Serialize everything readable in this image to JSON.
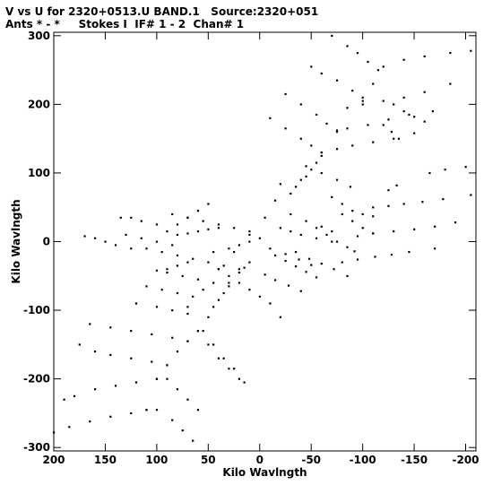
{
  "header": {
    "line1": "V vs U for 2320+0513.U BAND.1   Source:2320+051",
    "line2": "Ants * - *     Stokes I  IF# 1 - 2  Chan# 1"
  },
  "chart_data": {
    "type": "scatter",
    "xlabel": "Kilo Wavlngth",
    "ylabel": "Kilo Wavlngth",
    "xlim": [
      200,
      -210
    ],
    "ylim": [
      -305,
      305
    ],
    "x_reversed": true,
    "xticks": [
      200,
      150,
      100,
      50,
      0,
      -50,
      -100,
      -150,
      -200
    ],
    "xtick_labels": [
      "200",
      "150",
      "100",
      "50",
      "0",
      "-50",
      "-100",
      "-150",
      "-200"
    ],
    "yticks": [
      300,
      200,
      100,
      0,
      -100,
      -200,
      -300
    ],
    "ytick_labels": [
      "300",
      "200",
      "100",
      "0",
      "-100",
      "-200",
      "-300"
    ],
    "grid": false,
    "marker_color": "#000000",
    "series": [
      {
        "points": [
          [
            -125,
            75
          ],
          [
            -133,
            82
          ],
          [
            -165,
            100
          ],
          [
            -180,
            105
          ],
          [
            -200,
            109
          ],
          [
            -220,
            115
          ],
          [
            -110,
            50
          ],
          [
            -125,
            52
          ],
          [
            -140,
            55
          ],
          [
            -158,
            58
          ],
          [
            -178,
            62
          ],
          [
            -205,
            68
          ],
          [
            -95,
            8
          ],
          [
            -110,
            12
          ],
          [
            -130,
            15
          ],
          [
            -150,
            18
          ],
          [
            -170,
            22
          ],
          [
            -190,
            28
          ],
          [
            -80,
            -30
          ],
          [
            -95,
            -26
          ],
          [
            -112,
            -22
          ],
          [
            -128,
            -19
          ],
          [
            -145,
            -15
          ],
          [
            -170,
            -10
          ],
          [
            -70,
            65
          ],
          [
            -80,
            55
          ],
          [
            -90,
            45
          ],
          [
            -100,
            40
          ],
          [
            -110,
            37
          ],
          [
            -55,
            20
          ],
          [
            -65,
            10
          ],
          [
            -75,
            0
          ],
          [
            -85,
            -8
          ],
          [
            -92,
            -14
          ],
          [
            -35,
            -15
          ],
          [
            -48,
            -25
          ],
          [
            -60,
            -32
          ],
          [
            -72,
            -40
          ],
          [
            -85,
            -50
          ],
          [
            -45,
            110
          ],
          [
            -60,
            100
          ],
          [
            -75,
            90
          ],
          [
            -88,
            80
          ],
          [
            -5,
            -48
          ],
          [
            -15,
            -56
          ],
          [
            -28,
            -64
          ],
          [
            -40,
            -72
          ],
          [
            -30,
            40
          ],
          [
            -45,
            30
          ],
          [
            -60,
            22
          ],
          [
            -70,
            15
          ],
          [
            -10,
            -10
          ],
          [
            -25,
            -18
          ],
          [
            -38,
            -26
          ],
          [
            -50,
            -34
          ],
          [
            -20,
            84
          ],
          [
            -15,
            60
          ],
          [
            -5,
            35
          ],
          [
            10,
            10
          ],
          [
            25,
            -15
          ],
          [
            40,
            -40
          ],
          [
            55,
            -70
          ],
          [
            70,
            -95
          ],
          [
            -20,
            20
          ],
          [
            -30,
            15
          ],
          [
            -40,
            10
          ],
          [
            -55,
            5
          ],
          [
            -70,
            0
          ],
          [
            0,
            5
          ],
          [
            10,
            0
          ],
          [
            20,
            -5
          ],
          [
            30,
            -10
          ],
          [
            45,
            -15
          ],
          [
            -15,
            -20
          ],
          [
            -25,
            -28
          ],
          [
            -35,
            -36
          ],
          [
            -45,
            -44
          ],
          [
            -55,
            -52
          ],
          [
            100,
            25
          ],
          [
            115,
            30
          ],
          [
            125,
            35
          ],
          [
            135,
            35
          ],
          [
            130,
            10
          ],
          [
            115,
            5
          ],
          [
            100,
            0
          ],
          [
            85,
            -5
          ],
          [
            110,
            -10
          ],
          [
            95,
            -15
          ],
          [
            80,
            -20
          ],
          [
            65,
            -25
          ],
          [
            50,
            -30
          ],
          [
            35,
            -35
          ],
          [
            20,
            -40
          ],
          [
            85,
            40
          ],
          [
            70,
            35
          ],
          [
            55,
            30
          ],
          [
            40,
            25
          ],
          [
            25,
            20
          ],
          [
            10,
            15
          ],
          [
            90,
            -45
          ],
          [
            75,
            -50
          ],
          [
            60,
            -55
          ],
          [
            45,
            -60
          ],
          [
            30,
            -65
          ],
          [
            110,
            -65
          ],
          [
            95,
            -70
          ],
          [
            80,
            -75
          ],
          [
            65,
            -80
          ],
          [
            120,
            -90
          ],
          [
            100,
            -95
          ],
          [
            85,
            -100
          ],
          [
            70,
            -105
          ],
          [
            40,
            -40
          ],
          [
            30,
            -50
          ],
          [
            20,
            -60
          ],
          [
            10,
            -70
          ],
          [
            0,
            -80
          ],
          [
            -10,
            -90
          ],
          [
            -20,
            -110
          ],
          [
            50,
            55
          ],
          [
            60,
            45
          ],
          [
            70,
            35
          ],
          [
            80,
            25
          ],
          [
            90,
            15
          ],
          [
            -100,
            210
          ],
          [
            -110,
            230
          ],
          [
            -120,
            255
          ],
          [
            -140,
            265
          ],
          [
            -160,
            270
          ],
          [
            -185,
            275
          ],
          [
            -205,
            278
          ],
          [
            -85,
            195
          ],
          [
            -100,
            200
          ],
          [
            -120,
            205
          ],
          [
            -140,
            210
          ],
          [
            -160,
            218
          ],
          [
            -185,
            230
          ],
          [
            -75,
            162
          ],
          [
            -85,
            165
          ],
          [
            -105,
            170
          ],
          [
            -125,
            178
          ],
          [
            -145,
            185
          ],
          [
            -168,
            190
          ],
          [
            -60,
            130
          ],
          [
            -75,
            135
          ],
          [
            -90,
            140
          ],
          [
            -110,
            145
          ],
          [
            -130,
            150
          ],
          [
            -150,
            158
          ],
          [
            -70,
            300
          ],
          [
            -85,
            285
          ],
          [
            -95,
            275
          ],
          [
            -105,
            262
          ],
          [
            -115,
            250
          ],
          [
            -50,
            255
          ],
          [
            -60,
            245
          ],
          [
            -75,
            235
          ],
          [
            -90,
            220
          ],
          [
            -100,
            205
          ],
          [
            -25,
            215
          ],
          [
            -40,
            200
          ],
          [
            -55,
            185
          ],
          [
            -65,
            172
          ],
          [
            -75,
            160
          ],
          [
            -10,
            180
          ],
          [
            -25,
            165
          ],
          [
            -40,
            150
          ],
          [
            -50,
            140
          ],
          [
            -60,
            130
          ],
          [
            -45,
            95
          ],
          [
            -50,
            105
          ],
          [
            -55,
            115
          ],
          [
            -60,
            125
          ],
          [
            60,
            -130
          ],
          [
            70,
            -145
          ],
          [
            80,
            -160
          ],
          [
            90,
            -180
          ],
          [
            100,
            -200
          ],
          [
            110,
            -245
          ],
          [
            110,
            -245
          ],
          [
            125,
            -250
          ],
          [
            145,
            -255
          ],
          [
            165,
            -262
          ],
          [
            185,
            -270
          ],
          [
            200,
            -278
          ],
          [
            100,
            -200
          ],
          [
            120,
            -205
          ],
          [
            140,
            -210
          ],
          [
            160,
            -215
          ],
          [
            180,
            -225
          ],
          [
            190,
            -230
          ],
          [
            90,
            -180
          ],
          [
            105,
            -175
          ],
          [
            125,
            -170
          ],
          [
            145,
            -165
          ],
          [
            160,
            -160
          ],
          [
            175,
            -150
          ],
          [
            70,
            -145
          ],
          [
            85,
            -140
          ],
          [
            105,
            -135
          ],
          [
            125,
            -130
          ],
          [
            145,
            -125
          ],
          [
            165,
            -120
          ],
          [
            60,
            -130
          ],
          [
            50,
            -150
          ],
          [
            40,
            -170
          ],
          [
            30,
            -185
          ],
          [
            20,
            -200
          ],
          [
            90,
            -200
          ],
          [
            80,
            -215
          ],
          [
            70,
            -230
          ],
          [
            60,
            -245
          ],
          [
            100,
            -245
          ],
          [
            85,
            -260
          ],
          [
            75,
            -275
          ],
          [
            65,
            -290
          ],
          [
            55,
            -130
          ],
          [
            45,
            -150
          ],
          [
            35,
            -170
          ],
          [
            25,
            -185
          ],
          [
            15,
            -205
          ],
          [
            30,
            -60
          ],
          [
            35,
            -75
          ],
          [
            40,
            -85
          ],
          [
            45,
            -95
          ],
          [
            50,
            -110
          ],
          [
            -130,
            200
          ],
          [
            -140,
            190
          ],
          [
            -150,
            182
          ],
          [
            -160,
            175
          ],
          [
            -120,
            170
          ],
          [
            -128,
            160
          ],
          [
            -135,
            150
          ],
          [
            -30,
            70
          ],
          [
            -35,
            80
          ],
          [
            -40,
            90
          ],
          [
            10,
            -30
          ],
          [
            15,
            -38
          ],
          [
            20,
            -45
          ],
          [
            40,
            20
          ],
          [
            50,
            18
          ],
          [
            60,
            15
          ],
          [
            70,
            12
          ],
          [
            80,
            10
          ],
          [
            -80,
            40
          ],
          [
            -90,
            30
          ],
          [
            -100,
            20
          ],
          [
            -110,
            12
          ],
          [
            70,
            -30
          ],
          [
            80,
            -35
          ],
          [
            90,
            -40
          ],
          [
            100,
            -42
          ],
          [
            125,
            -10
          ],
          [
            140,
            -5
          ],
          [
            150,
            0
          ],
          [
            160,
            5
          ],
          [
            170,
            8
          ]
        ]
      }
    ]
  }
}
